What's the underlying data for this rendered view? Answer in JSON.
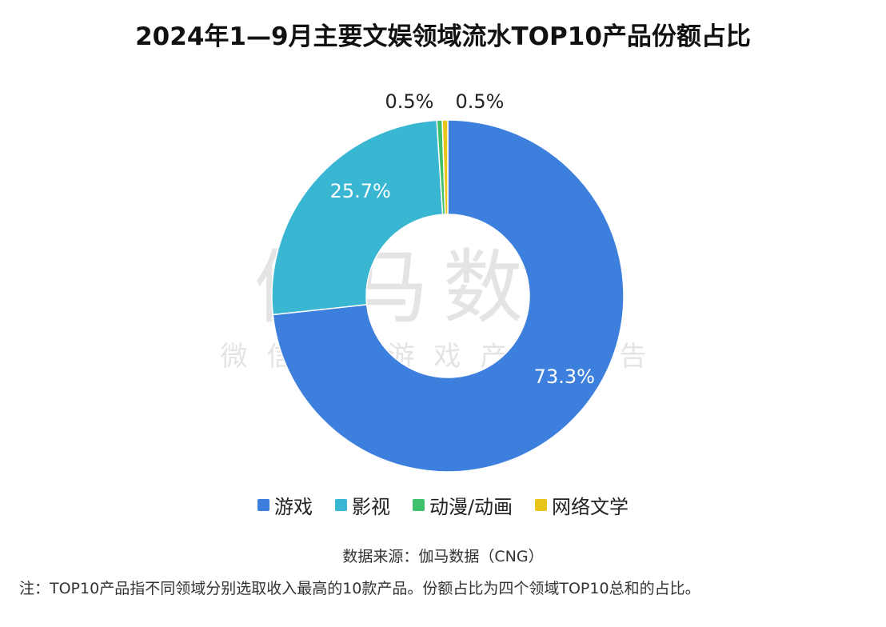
{
  "chart_data": {
    "type": "pie",
    "title": "2024年1—9月主要文娱领域流水TOP10产品份额占比",
    "categories": [
      "游戏",
      "影视",
      "动漫/动画",
      "网络文学"
    ],
    "values": [
      73.3,
      25.7,
      0.5,
      0.5
    ],
    "value_labels": [
      "73.3%",
      "25.7%",
      "0.5%",
      "0.5%"
    ],
    "unit": "%",
    "donut": true,
    "legend_position": "bottom",
    "colors": [
      "#3d7fdc",
      "#38b6d2",
      "#3fc06c",
      "#e9c419"
    ]
  },
  "watermark": {
    "main": "伽马数据",
    "sub": "微信号 游戏产业报告"
  },
  "source": "数据来源：伽马数据（CNG）",
  "note": "注：TOP10产品指不同领域分别选取收入最高的10款产品。份额占比为四个领域TOP10总和的占比。"
}
